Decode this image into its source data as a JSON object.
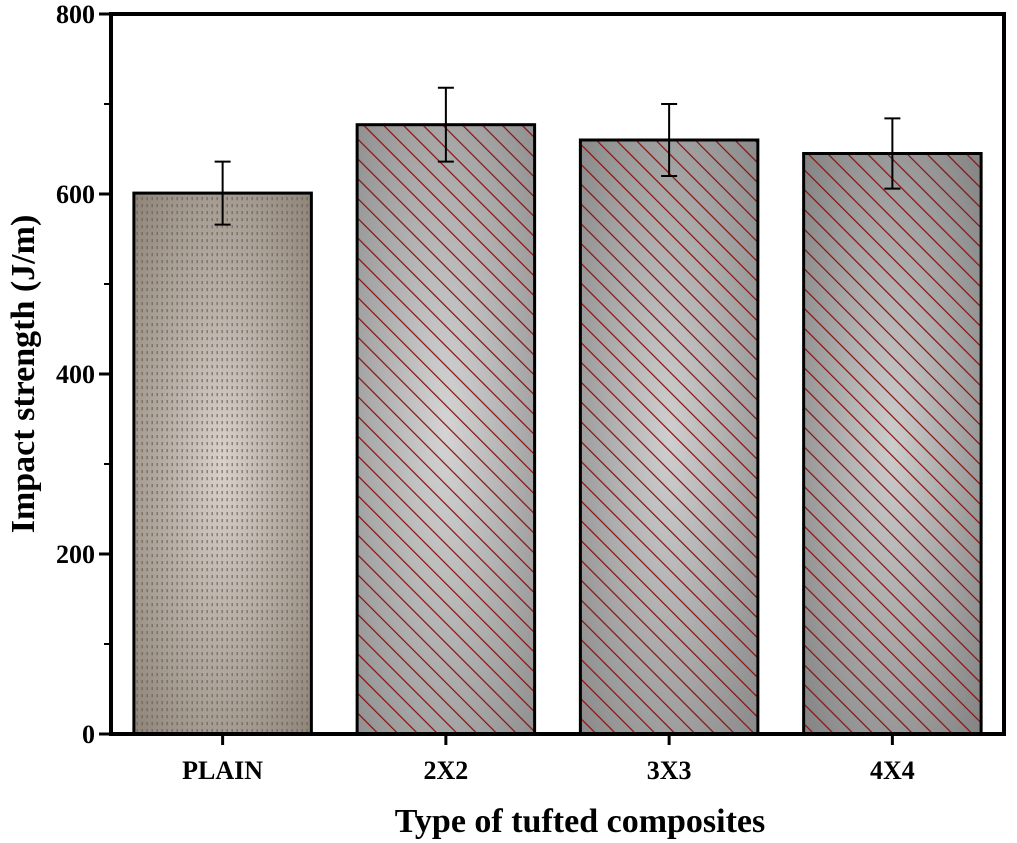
{
  "chart_data": {
    "type": "bar",
    "categories": [
      "PLAIN",
      "2X2",
      "3X3",
      "4X4"
    ],
    "values": [
      601,
      677,
      660,
      645
    ],
    "errors": [
      35,
      41,
      40,
      39
    ],
    "xlabel": "Type of tufted composites",
    "ylabel": "Impact strength (J/m)",
    "ylim": [
      0,
      800
    ],
    "yticks": [
      0,
      200,
      400,
      600,
      800
    ],
    "grid": false,
    "legend": "none",
    "bar_styles": [
      {
        "pattern": "dots",
        "base_color": "#8a7f74",
        "light_color": "#d8d2cb",
        "stroke_color": "#6b5e52"
      },
      {
        "pattern": "diagonal",
        "base_color": "#8c8c8c",
        "light_color": "#d4d4d4",
        "stroke_color": "#8b0e0e"
      },
      {
        "pattern": "diagonal",
        "base_color": "#858585",
        "light_color": "#cfcfcf",
        "stroke_color": "#8b0e0e"
      },
      {
        "pattern": "diagonal",
        "base_color": "#7e7e7e",
        "light_color": "#cccccc",
        "stroke_color": "#8b0e0e"
      }
    ]
  }
}
